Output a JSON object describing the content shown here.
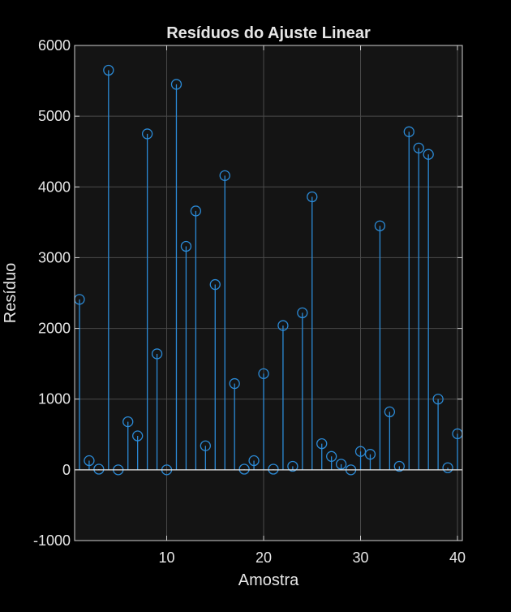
{
  "chart_data": {
    "type": "stem",
    "title": "Resíduos do Ajuste Linear",
    "xlabel": "Amostra",
    "ylabel": "Resíduo",
    "xlim": [
      0.5,
      40.5
    ],
    "ylim": [
      -1000,
      6000
    ],
    "xticks": [
      10,
      20,
      30,
      40
    ],
    "yticks": [
      -1000,
      0,
      1000,
      2000,
      3000,
      4000,
      5000,
      6000
    ],
    "grid": true,
    "baseline": 0,
    "x": [
      1,
      2,
      3,
      4,
      5,
      6,
      7,
      8,
      9,
      10,
      11,
      12,
      13,
      14,
      15,
      16,
      17,
      18,
      19,
      20,
      21,
      22,
      23,
      24,
      25,
      26,
      27,
      28,
      29,
      30,
      31,
      32,
      33,
      34,
      35,
      36,
      37,
      38,
      39,
      40
    ],
    "values": [
      2410,
      130,
      10,
      5650,
      0,
      680,
      480,
      4750,
      1640,
      0,
      5450,
      3160,
      3660,
      340,
      2620,
      4160,
      1220,
      10,
      130,
      1360,
      10,
      2040,
      50,
      2220,
      3860,
      370,
      190,
      80,
      0,
      260,
      220,
      3450,
      820,
      50,
      4780,
      4550,
      4460,
      1000,
      30,
      510
    ]
  },
  "colors": {
    "figure_bg": "#000000",
    "axes_bg": "#141414",
    "grid": "#4a4a4a",
    "axis": "#cfcfcf",
    "text": "#e6e6e6",
    "series": "#2b8ad6"
  }
}
